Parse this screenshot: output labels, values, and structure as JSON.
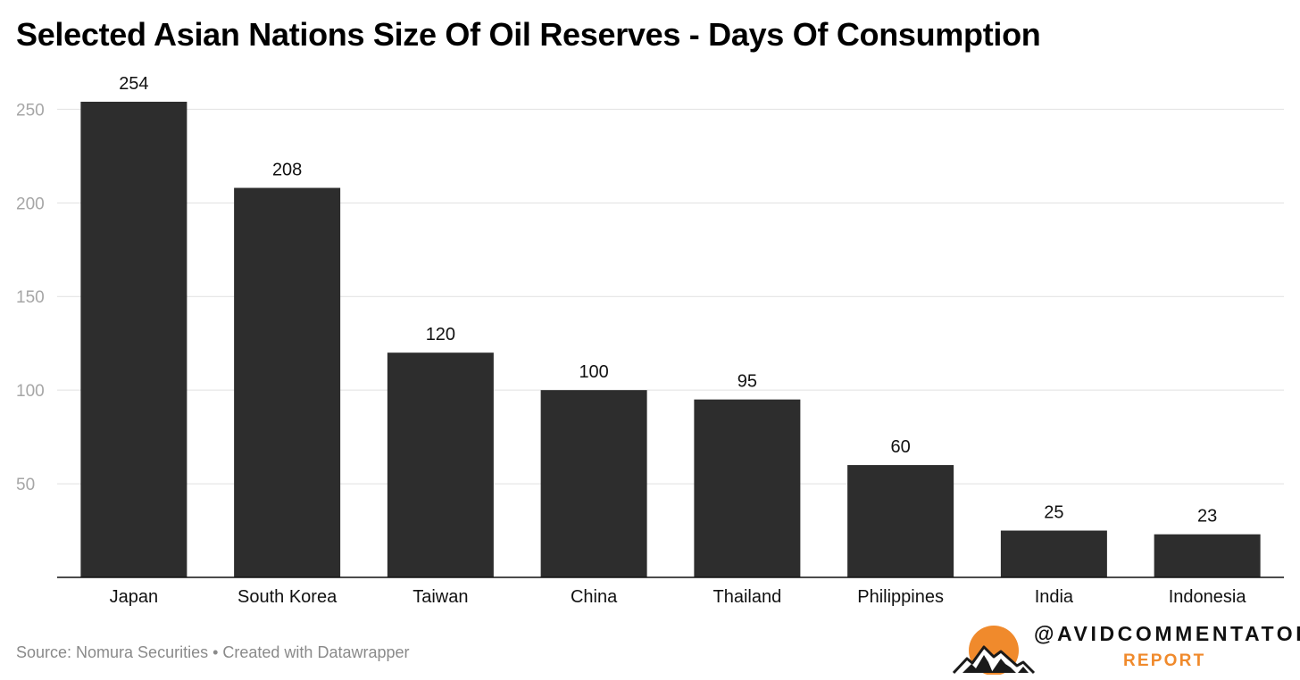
{
  "chart_data": {
    "type": "bar",
    "title": "Selected Asian Nations Size Of Oil Reserves - Days Of Consumption",
    "categories": [
      "Japan",
      "South Korea",
      "Taiwan",
      "China",
      "Thailand",
      "Philippines",
      "India",
      "Indonesia"
    ],
    "values": [
      254,
      208,
      120,
      100,
      95,
      60,
      25,
      23
    ],
    "data_labels": [
      "254",
      "208",
      "120",
      "100",
      "95",
      "60",
      "25",
      "23"
    ],
    "xlabel": "",
    "ylabel": "",
    "ylim": [
      0,
      254
    ],
    "yticks": [
      50,
      100,
      150,
      200,
      250
    ],
    "ytick_labels": [
      "50",
      "100",
      "150",
      "200",
      "250"
    ],
    "grid": true,
    "legend": "none",
    "bar_color": "#2d2d2d",
    "grid_color": "#e1e1e1",
    "axis_color": "#111111"
  },
  "footer": {
    "source_text": "Source: Nomura Securities • Created with Datawrapper"
  },
  "branding": {
    "handle": "@AVIDCOMMENTATOR",
    "subtitle": "REPORT",
    "accent_color": "#f08a2c",
    "logo_icon": "sun-over-mountains-logo"
  }
}
